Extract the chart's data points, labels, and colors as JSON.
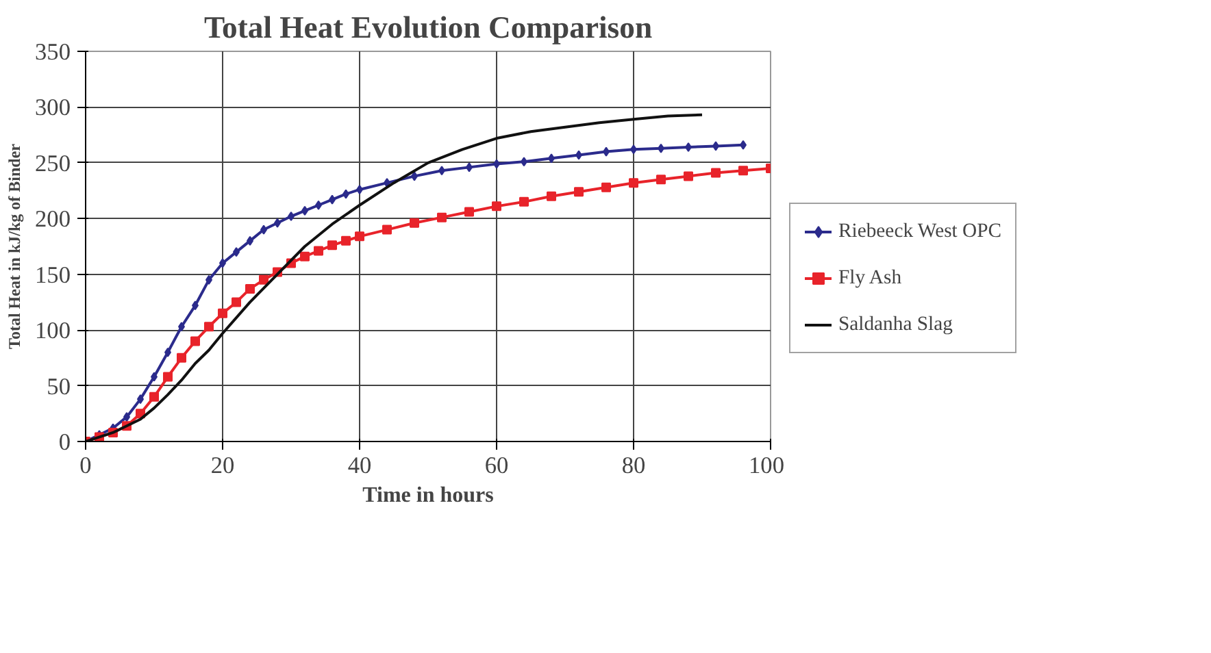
{
  "chart_data": {
    "type": "line",
    "title": "Total Heat Evolution Comparison",
    "xlabel": "Time in hours",
    "ylabel": "Total Heat in kJ/kg of Binder",
    "xlim": [
      0,
      100
    ],
    "xticks": [
      0,
      20,
      40,
      60,
      80,
      100
    ],
    "ylim": [
      0,
      350
    ],
    "yticks": [
      0,
      50,
      100,
      150,
      200,
      250,
      300,
      350
    ],
    "grid": true,
    "legend": "right",
    "line_style": "solid",
    "series": [
      {
        "name": "Riebeeck West OPC",
        "color": "#2b2b8c",
        "marker": "diamond",
        "x": [
          0,
          2,
          4,
          6,
          8,
          10,
          12,
          14,
          16,
          18,
          20,
          22,
          24,
          26,
          28,
          30,
          32,
          34,
          36,
          38,
          40,
          44,
          48,
          52,
          56,
          60,
          64,
          68,
          72,
          76,
          80,
          84,
          88,
          92,
          96
        ],
        "values": [
          0,
          6,
          12,
          22,
          38,
          58,
          80,
          103,
          122,
          145,
          160,
          170,
          180,
          190,
          196,
          202,
          207,
          212,
          217,
          222,
          226,
          232,
          238,
          243,
          246,
          249,
          251,
          254,
          257,
          260,
          262,
          263,
          264,
          265,
          266
        ]
      },
      {
        "name": "Fly Ash",
        "color": "#e8232a",
        "marker": "square",
        "x": [
          0,
          2,
          4,
          6,
          8,
          10,
          12,
          14,
          16,
          18,
          20,
          22,
          24,
          26,
          28,
          30,
          32,
          34,
          36,
          38,
          40,
          44,
          48,
          52,
          56,
          60,
          64,
          68,
          72,
          76,
          80,
          84,
          88,
          92,
          96,
          100
        ],
        "values": [
          0,
          4,
          8,
          14,
          25,
          40,
          58,
          75,
          90,
          103,
          115,
          125,
          137,
          145,
          152,
          160,
          166,
          171,
          176,
          180,
          184,
          190,
          196,
          201,
          206,
          211,
          215,
          220,
          224,
          228,
          232,
          235,
          238,
          241,
          243,
          245
        ]
      },
      {
        "name": "Saldanha Slag",
        "color": "#111111",
        "marker": "none",
        "x": [
          0,
          4,
          8,
          10,
          12,
          14,
          16,
          18,
          20,
          24,
          28,
          32,
          36,
          40,
          45,
          50,
          55,
          60,
          65,
          70,
          75,
          80,
          85,
          90
        ],
        "values": [
          0,
          8,
          20,
          30,
          42,
          55,
          70,
          82,
          97,
          125,
          150,
          175,
          195,
          212,
          232,
          250,
          262,
          272,
          278,
          282,
          286,
          289,
          292,
          293
        ]
      }
    ]
  }
}
